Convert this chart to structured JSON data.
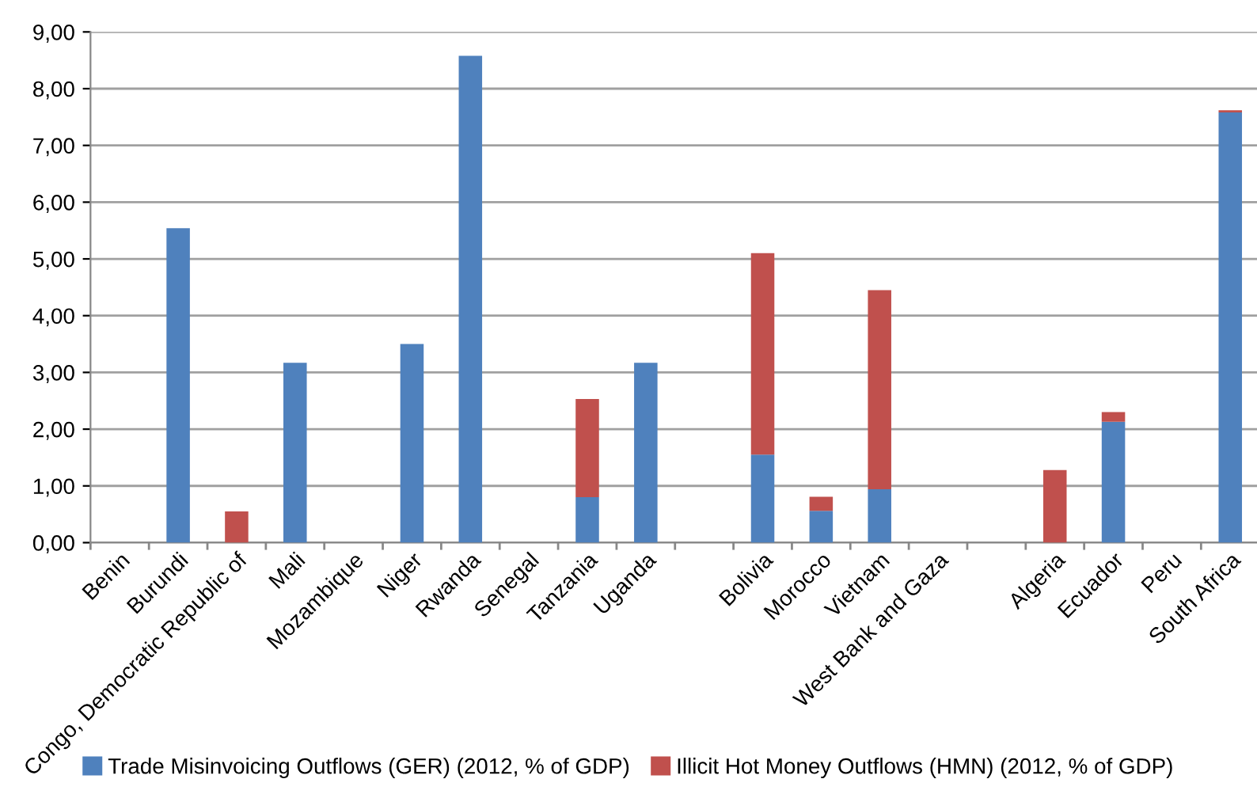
{
  "chart_data": {
    "type": "bar",
    "stacked": true,
    "categories": [
      "Benin",
      "Burundi",
      "Congo, Democratic Republic of",
      "Mali",
      "Mozambique",
      "Niger",
      "Rwanda",
      "Senegal",
      "Tanzania",
      "Uganda",
      null,
      "Bolivia",
      "Morocco",
      "Vietnam",
      "West Bank and Gaza",
      null,
      "Algeria",
      "Ecuador",
      "Peru",
      "South Africa"
    ],
    "series": [
      {
        "name": "Trade Misinvoicing Outflows (GER) (2012, % of GDP)",
        "color": "#4f81bd",
        "values": [
          0,
          5.54,
          0,
          3.17,
          0,
          3.5,
          8.58,
          0,
          0.8,
          3.17,
          null,
          1.55,
          0.56,
          0.94,
          0,
          null,
          0,
          2.13,
          0,
          7.58
        ]
      },
      {
        "name": "Illicit Hot Money Outflows (HMN) (2012, % of GDP)",
        "color": "#c0504d",
        "values": [
          0,
          0,
          0.55,
          0,
          0,
          0,
          0,
          0,
          1.73,
          0,
          null,
          3.55,
          0.25,
          3.51,
          0,
          null,
          1.28,
          0.17,
          0,
          0.04
        ]
      }
    ],
    "ylim": [
      0,
      9
    ],
    "yticks": [
      {
        "value": 0,
        "label": "0,00"
      },
      {
        "value": 1,
        "label": "1,00"
      },
      {
        "value": 2,
        "label": "2,00"
      },
      {
        "value": 3,
        "label": "3,00"
      },
      {
        "value": 4,
        "label": "4,00"
      },
      {
        "value": 5,
        "label": "5,00"
      },
      {
        "value": 6,
        "label": "6,00"
      },
      {
        "value": 7,
        "label": "7,00"
      },
      {
        "value": 8,
        "label": "8,00"
      },
      {
        "value": 9,
        "label": "9,00"
      }
    ],
    "grid": "y",
    "legend": "bottom"
  }
}
